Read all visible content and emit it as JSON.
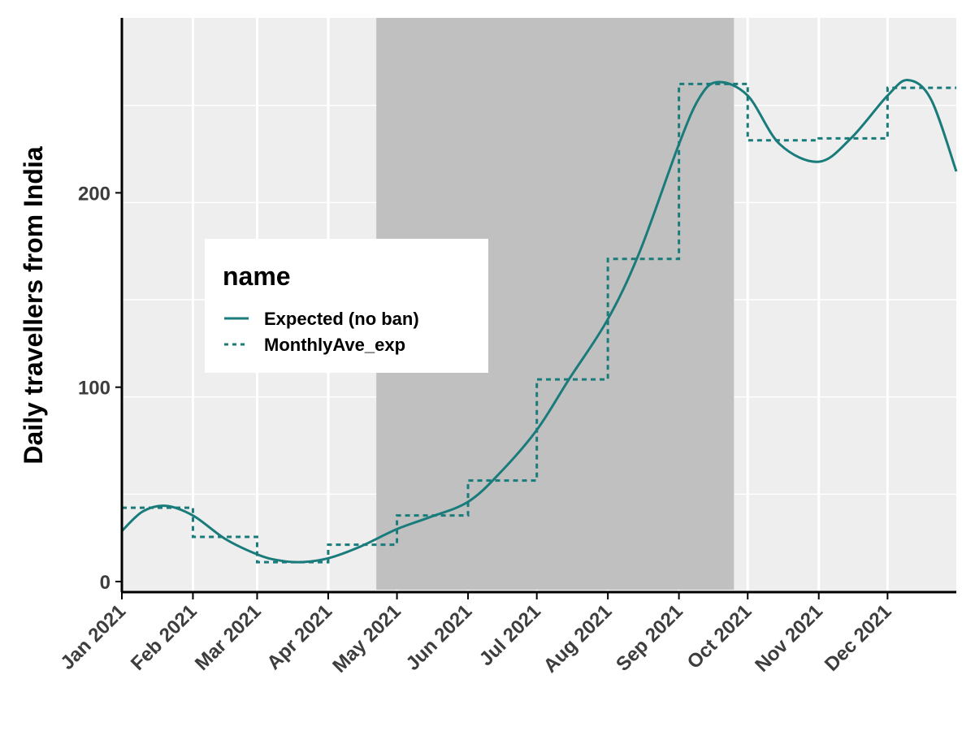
{
  "chart_data": {
    "type": "line",
    "ylabel": "Daily travellers from India",
    "xlabel": "",
    "x_axis": {
      "type": "date",
      "range": [
        "2021-01-01",
        "2021-12-31"
      ],
      "tick_labels": [
        "Jan 2021",
        "Feb 2021",
        "Mar 2021",
        "Apr 2021",
        "May 2021",
        "Jun 2021",
        "Jul 2021",
        "Aug 2021",
        "Sep 2021",
        "Oct 2021",
        "Nov 2021",
        "Dec 2021"
      ],
      "tick_dates": [
        "2021-01-01",
        "2021-02-01",
        "2021-03-01",
        "2021-04-01",
        "2021-05-01",
        "2021-06-01",
        "2021-07-01",
        "2021-08-01",
        "2021-09-01",
        "2021-10-01",
        "2021-11-01",
        "2021-12-01"
      ]
    },
    "y_axis": {
      "ylim": [
        -5,
        290
      ],
      "ticks": [
        0,
        100,
        200
      ],
      "tick_labels": [
        "0",
        "100",
        "200"
      ]
    },
    "grid": true,
    "shaded_region": {
      "from": "2021-04-22",
      "to": "2021-09-25",
      "color": "#c0c0c0"
    },
    "legend": {
      "title": "name",
      "position": "left-center",
      "entries": [
        "Expected (no ban)",
        "MonthlyAve_exp"
      ]
    },
    "series": [
      {
        "name": "Expected (no ban)",
        "style": "solid",
        "color": "#1a7b7b",
        "x": [
          "2021-01-01",
          "2021-01-10",
          "2021-01-20",
          "2021-02-01",
          "2021-02-15",
          "2021-03-01",
          "2021-03-10",
          "2021-03-20",
          "2021-04-01",
          "2021-04-15",
          "2021-05-01",
          "2021-05-15",
          "2021-06-01",
          "2021-06-15",
          "2021-07-01",
          "2021-07-15",
          "2021-08-01",
          "2021-08-15",
          "2021-09-01",
          "2021-09-10",
          "2021-09-18",
          "2021-10-01",
          "2021-10-15",
          "2021-11-01",
          "2021-11-15",
          "2021-12-01",
          "2021-12-10",
          "2021-12-20",
          "2021-12-31"
        ],
        "values": [
          26,
          36,
          39,
          34,
          22,
          14,
          11,
          10,
          12,
          18,
          27,
          33,
          41,
          56,
          78,
          104,
          135,
          170,
          225,
          249,
          257,
          250,
          225,
          216,
          228,
          250,
          258,
          248,
          211
        ]
      },
      {
        "name": "MonthlyAve_exp",
        "style": "dashed",
        "color": "#1a7b7b",
        "x": [
          "2021-01-01",
          "2021-02-01",
          "2021-03-01",
          "2021-04-01",
          "2021-05-01",
          "2021-06-01",
          "2021-07-01",
          "2021-08-01",
          "2021-09-01",
          "2021-10-01",
          "2021-11-01",
          "2021-12-01"
        ],
        "values": [
          38,
          23,
          10,
          19,
          34,
          52,
          104,
          166,
          256,
          227,
          228,
          254
        ]
      }
    ]
  }
}
